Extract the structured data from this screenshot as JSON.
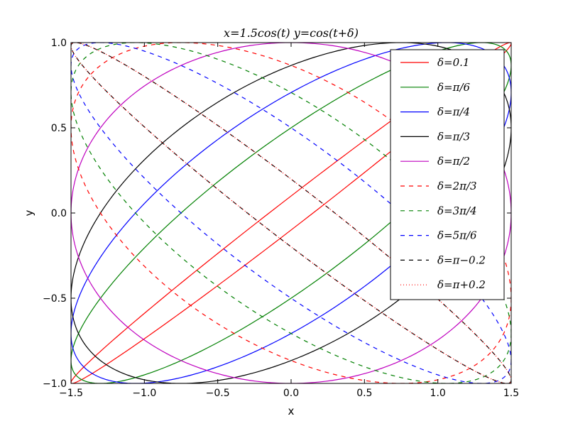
{
  "chart_data": {
    "type": "line",
    "title": "x=1.5cos(t)    y=cos(t+δ)",
    "xlabel": "x",
    "ylabel": "y",
    "xlim": [
      -1.5,
      1.5
    ],
    "ylim": [
      -1.0,
      1.0
    ],
    "xticks": [
      -1.5,
      -1.0,
      -0.5,
      0.0,
      0.5,
      1.0,
      1.5
    ],
    "xtick_labels": [
      "−1.5",
      "−1.0",
      "−0.5",
      "0.0",
      "0.5",
      "1.0",
      "1.5"
    ],
    "yticks": [
      -1.0,
      -0.5,
      0.0,
      0.5,
      1.0
    ],
    "ytick_labels": [
      "−1.0",
      "−0.5",
      "0.0",
      "0.5",
      "1.0"
    ],
    "grid": false,
    "legend_position": "top-right",
    "x_amplitude": 1.5,
    "series": [
      {
        "name": "δ=0.1",
        "delta": 0.1,
        "color": "#ff0000",
        "style": "solid"
      },
      {
        "name": "δ=π/6",
        "delta": 0.5235988,
        "color": "#008000",
        "style": "solid"
      },
      {
        "name": "δ=π/4",
        "delta": 0.7853982,
        "color": "#0000ff",
        "style": "solid"
      },
      {
        "name": "δ=π/3",
        "delta": 1.0471976,
        "color": "#000000",
        "style": "solid"
      },
      {
        "name": "δ=π/2",
        "delta": 1.5707963,
        "color": "#bf00bf",
        "style": "solid"
      },
      {
        "name": "δ=2π/3",
        "delta": 2.0943951,
        "color": "#ff0000",
        "style": "dashed"
      },
      {
        "name": "δ=3π/4",
        "delta": 2.3561945,
        "color": "#008000",
        "style": "dashed"
      },
      {
        "name": "δ=5π/6",
        "delta": 2.6179939,
        "color": "#0000ff",
        "style": "dashed"
      },
      {
        "name": "δ=π−0.2",
        "delta": 2.9415927,
        "color": "#000000",
        "style": "dashed"
      },
      {
        "name": "δ=π+0.2",
        "delta": 3.3415927,
        "color": "#ff0000",
        "style": "dotted"
      }
    ]
  }
}
